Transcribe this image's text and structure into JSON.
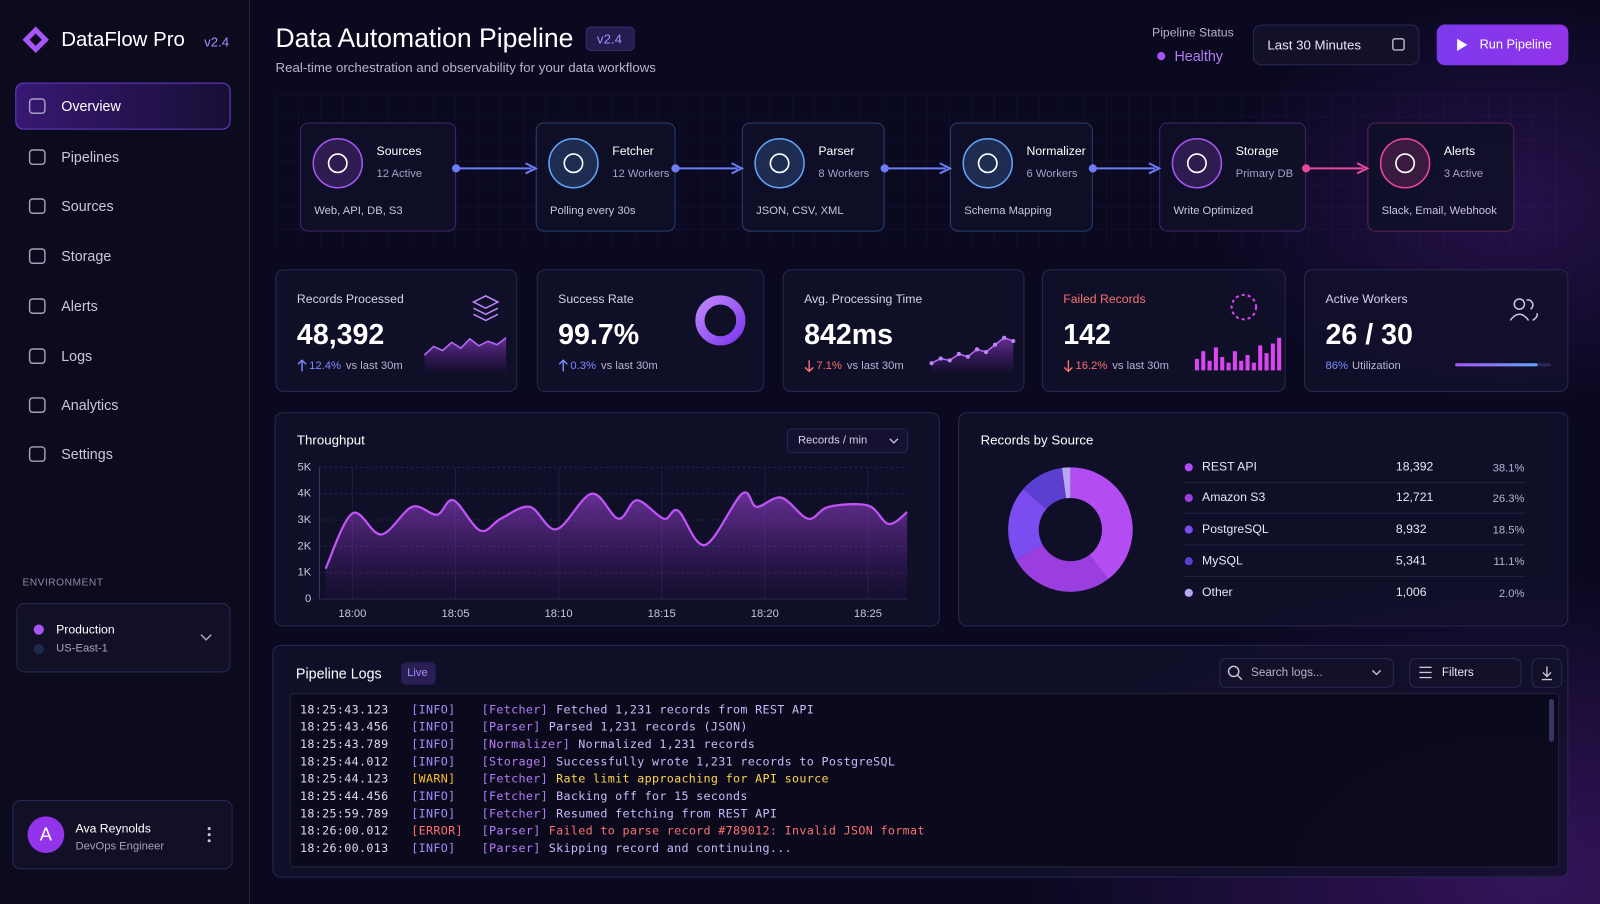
{
  "brand": {
    "name": "DataFlow Pro",
    "version": "v2.4"
  },
  "nav": [
    "Overview",
    "Pipelines",
    "Sources",
    "Storage",
    "Alerts",
    "Logs",
    "Analytics",
    "Settings"
  ],
  "environment": {
    "label": "ENVIRONMENT",
    "name": "Production",
    "region": "US-East-1"
  },
  "user": {
    "initial": "A",
    "name": "Ava Reynolds",
    "role": "DevOps Engineer"
  },
  "header": {
    "title": "Data Automation Pipeline",
    "version": "v2.4",
    "subtitle": "Real-time orchestration and observability for your data workflows",
    "status_label": "Pipeline Status",
    "status": "Healthy",
    "time_range": "Last 30 Minutes",
    "run_button": "Run Pipeline"
  },
  "pipeline": [
    {
      "name": "Sources",
      "detail": "12 Active",
      "desc": "Web, API, DB, S3",
      "color": "#a855f7"
    },
    {
      "name": "Fetcher",
      "detail": "12 Workers",
      "desc": "Polling every 30s",
      "color": "#60a5fa"
    },
    {
      "name": "Parser",
      "detail": "8 Workers",
      "desc": "JSON, CSV, XML",
      "color": "#60a5fa"
    },
    {
      "name": "Normalizer",
      "detail": "6 Workers",
      "desc": "Schema Mapping",
      "color": "#60a5fa"
    },
    {
      "name": "Storage",
      "detail": "Primary DB",
      "desc": "Write Optimized",
      "color": "#a855f7"
    },
    {
      "name": "Alerts",
      "detail": "3 Active",
      "desc": "Slack, Email, Webhook",
      "color": "#ec4899"
    }
  ],
  "kpis": [
    {
      "label": "Records Processed",
      "value": "48,392",
      "delta": "12.4%",
      "direction": "up",
      "compare": "vs last 30m",
      "spark": [
        3,
        4.5,
        3.8,
        5.2,
        4.2,
        5.8,
        4.6,
        5.4,
        4.8,
        6
      ]
    },
    {
      "label": "Success Rate",
      "value": "99.7%",
      "delta": "0.3%",
      "direction": "up",
      "compare": "vs last 30m"
    },
    {
      "label": "Avg. Processing Time",
      "value": "842ms",
      "delta": "7.1%",
      "direction": "down",
      "compare": "vs last 30m",
      "spark": [
        2,
        3,
        2.6,
        4,
        3.4,
        5,
        4.4,
        6,
        7.5,
        6.8
      ]
    },
    {
      "label": "Failed Records",
      "value": "142",
      "delta": "16.2%",
      "direction": "down",
      "compare": "vs last 30m",
      "bars": [
        3,
        5,
        2.5,
        6,
        3.5,
        2,
        5,
        2.5,
        4,
        2,
        6.5,
        4.5,
        7,
        8.5
      ]
    },
    {
      "label": "Active Workers",
      "value": "26 / 30",
      "util": 86,
      "util_label": "86%",
      "compare": "Utilization"
    }
  ],
  "chart_data": [
    {
      "type": "line",
      "title": "Throughput",
      "unit_select": "Records / min",
      "color": "#c054f5",
      "x": [
        -1.3,
        0,
        1.4,
        2.9,
        4.1,
        4.9,
        6.2,
        7.2,
        8.6,
        9.9,
        11.6,
        12.9,
        13.8,
        15.1,
        15.8,
        17.1,
        18.9,
        19.6,
        20.8,
        22.1,
        23.1,
        25,
        26,
        26.9
      ],
      "values": [
        1150,
        3250,
        2450,
        3500,
        3200,
        3750,
        2600,
        3050,
        3500,
        2650,
        4000,
        3050,
        3750,
        3050,
        3350,
        2050,
        4000,
        3500,
        3850,
        3050,
        3500,
        3550,
        2850,
        3300
      ],
      "xlim": [
        -1.6,
        26.9
      ],
      "xticks": [
        {
          "value": 0,
          "label": "18:00"
        },
        {
          "value": 5,
          "label": "18:05"
        },
        {
          "value": 10,
          "label": "18:10"
        },
        {
          "value": 15,
          "label": "18:15"
        },
        {
          "value": 20,
          "label": "18:20"
        },
        {
          "value": 25,
          "label": "18:25"
        }
      ],
      "ylim": [
        0,
        5000
      ],
      "yticks": [
        0,
        {
          "value": 1000,
          "label": "1K"
        },
        {
          "value": 2000,
          "label": "2K"
        },
        {
          "value": 3000,
          "label": "3K"
        },
        {
          "value": 4000,
          "label": "4K"
        },
        {
          "value": 5000,
          "label": "5K"
        }
      ],
      "grid": true
    },
    {
      "type": "donut",
      "title": "Records by Source",
      "categories": [
        "REST API",
        "Amazon S3",
        "PostgreSQL",
        "MySQL",
        "Other"
      ],
      "values": [
        18392,
        12721,
        8932,
        5341,
        1006
      ],
      "value_labels": [
        "18,392",
        "12,721",
        "8,932",
        "5,341",
        "1,006"
      ],
      "percents": [
        38.1,
        26.3,
        18.5,
        11.1,
        2.0
      ],
      "percent_labels": [
        "38.1%",
        "26.3%",
        "18.5%",
        "11.1%",
        "2.0%"
      ],
      "colors": [
        "#b44cf3",
        "#9b3ee0",
        "#7b4cf0",
        "#5b3fd0",
        "#b9a6f5"
      ]
    }
  ],
  "logs": {
    "title": "Pipeline Logs",
    "badge": "Live",
    "search": "Search logs...",
    "filters": "Filters",
    "entries": [
      {
        "time": "18:25:43.123",
        "level": "[INFO]",
        "source": "[Fetcher]",
        "message": "Fetched 1,231 records from REST API"
      },
      {
        "time": "18:25:43.456",
        "level": "[INFO]",
        "source": "[Parser]",
        "message": "Parsed 1,231 records (JSON)"
      },
      {
        "time": "18:25:43.789",
        "level": "[INFO]",
        "source": "[Normalizer]",
        "message": "Normalized 1,231 records"
      },
      {
        "time": "18:25:44.012",
        "level": "[INFO]",
        "source": "[Storage]",
        "message": "Successfully wrote 1,231 records to PostgreSQL"
      },
      {
        "time": "18:25:44.123",
        "level": "[WARN]",
        "source": "[Fetcher]",
        "message": "Rate limit approaching for API source"
      },
      {
        "time": "18:25:44.456",
        "level": "[INFO]",
        "source": "[Fetcher]",
        "message": "Backing off for 15 seconds"
      },
      {
        "time": "18:25:59.789",
        "level": "[INFO]",
        "source": "[Fetcher]",
        "message": "Resumed fetching from REST API"
      },
      {
        "time": "18:26:00.012",
        "level": "[ERROR]",
        "source": "[Parser]",
        "message": "Failed to parse record #789012: Invalid JSON format"
      },
      {
        "time": "18:26:00.013",
        "level": "[INFO]",
        "source": "[Parser]",
        "message": "Skipping record and continuing..."
      }
    ]
  }
}
